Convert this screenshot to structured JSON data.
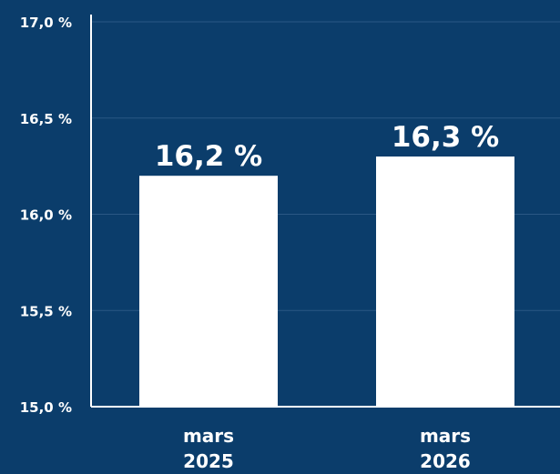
{
  "chart_data": {
    "type": "bar",
    "categories": [
      [
        "mars",
        "2025"
      ],
      [
        "mars",
        "2026"
      ]
    ],
    "values": [
      16.2,
      16.3
    ],
    "data_labels": [
      "16,2 %",
      "16,3 %"
    ],
    "ylim": [
      15.0,
      17.0
    ],
    "y_ticks": [
      15.0,
      15.5,
      16.0,
      16.5,
      17.0
    ],
    "y_tick_labels": [
      "15,0 %",
      "15,5 %",
      "16,0 %",
      "16,5 %",
      "17,0 %"
    ],
    "grid": true,
    "legend": "none",
    "colors": {
      "background": "#0b3d6b",
      "bar": "#ffffff",
      "text": "#ffffff",
      "axis": "#ffffff",
      "grid": "#2a5884"
    }
  }
}
